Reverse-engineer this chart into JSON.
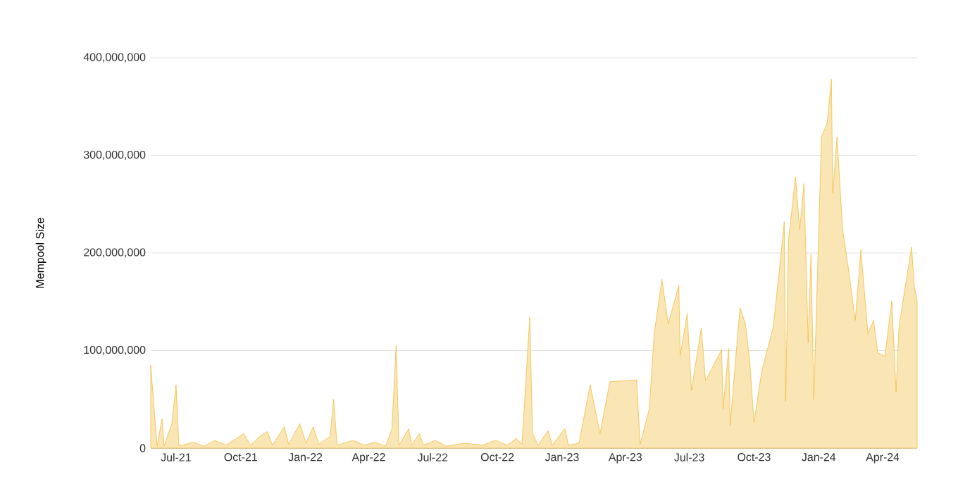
{
  "chart_data": {
    "type": "area",
    "ylabel": "Mempool Size",
    "color": "#f0b52c",
    "grid": "y",
    "xlim": [
      "2021-05-26",
      "2024-05-20"
    ],
    "xticks": [
      {
        "value": "2021-07-01",
        "label": "Jul-21"
      },
      {
        "value": "2021-10-01",
        "label": "Oct-21"
      },
      {
        "value": "2022-01-01",
        "label": "Jan-22"
      },
      {
        "value": "2022-04-01",
        "label": "Apr-22"
      },
      {
        "value": "2022-07-01",
        "label": "Jul-22"
      },
      {
        "value": "2022-10-01",
        "label": "Oct-22"
      },
      {
        "value": "2023-01-01",
        "label": "Jan-23"
      },
      {
        "value": "2023-04-01",
        "label": "Apr-23"
      },
      {
        "value": "2023-07-01",
        "label": "Jul-23"
      },
      {
        "value": "2023-10-01",
        "label": "Oct-23"
      },
      {
        "value": "2024-01-01",
        "label": "Jan-24"
      },
      {
        "value": "2024-04-01",
        "label": "Apr-24"
      }
    ],
    "ylim": [
      0,
      400000000
    ],
    "yticks": [
      {
        "value": 0,
        "label": "0"
      },
      {
        "value": 100000000,
        "label": "100,000,000"
      },
      {
        "value": 200000000,
        "label": "200,000,000"
      },
      {
        "value": 300000000,
        "label": "300,000,000"
      },
      {
        "value": 400000000,
        "label": "400,000,000"
      }
    ],
    "x": [
      "2021-05-26",
      "2021-06-01",
      "2021-06-04",
      "2021-06-11",
      "2021-06-14",
      "2021-06-25",
      "2021-07-01",
      "2021-07-05",
      "2021-07-10",
      "2021-07-25",
      "2021-08-10",
      "2021-08-25",
      "2021-09-10",
      "2021-09-25",
      "2021-10-05",
      "2021-10-15",
      "2021-10-28",
      "2021-11-08",
      "2021-11-15",
      "2021-12-02",
      "2021-12-08",
      "2021-12-24",
      "2022-01-02",
      "2022-01-12",
      "2022-01-20",
      "2022-02-05",
      "2022-02-10",
      "2022-02-15",
      "2022-03-10",
      "2022-03-25",
      "2022-04-10",
      "2022-04-25",
      "2022-05-04",
      "2022-05-10",
      "2022-05-14",
      "2022-05-28",
      "2022-06-01",
      "2022-06-12",
      "2022-06-18",
      "2022-07-05",
      "2022-07-20",
      "2022-08-15",
      "2022-09-10",
      "2022-09-28",
      "2022-10-15",
      "2022-10-28",
      "2022-11-05",
      "2022-11-16",
      "2022-11-20",
      "2022-11-28",
      "2022-12-12",
      "2022-12-18",
      "2023-01-05",
      "2023-01-10",
      "2023-01-25",
      "2023-02-10",
      "2023-02-24",
      "2023-03-10",
      "2023-04-17",
      "2023-04-22",
      "2023-05-05",
      "2023-05-12",
      "2023-05-23",
      "2023-06-01",
      "2023-06-16",
      "2023-06-18",
      "2023-06-28",
      "2023-07-04",
      "2023-07-18",
      "2023-07-24",
      "2023-08-16",
      "2023-08-18",
      "2023-08-26",
      "2023-08-28",
      "2023-09-11",
      "2023-09-19",
      "2023-09-25",
      "2023-10-01",
      "2023-10-12",
      "2023-10-28",
      "2023-11-05",
      "2023-11-13",
      "2023-11-15",
      "2023-11-19",
      "2023-11-29",
      "2023-12-05",
      "2023-12-11",
      "2023-12-17",
      "2023-12-21",
      "2023-12-25",
      "2024-01-05",
      "2024-01-13",
      "2024-01-19",
      "2024-01-21",
      "2024-01-27",
      "2024-02-04",
      "2024-02-12",
      "2024-02-22",
      "2024-03-01",
      "2024-03-11",
      "2024-03-19",
      "2024-03-25",
      "2024-04-04",
      "2024-04-14",
      "2024-04-20",
      "2024-04-24",
      "2024-05-04",
      "2024-05-12",
      "2024-05-16",
      "2024-05-20"
    ],
    "values": [
      85000000,
      30000000,
      2000000,
      30000000,
      2000000,
      25000000,
      65000000,
      3000000,
      3000000,
      6000000,
      2000000,
      8000000,
      3000000,
      10000000,
      15000000,
      3000000,
      12000000,
      17000000,
      3000000,
      22000000,
      4000000,
      25000000,
      5000000,
      22000000,
      4000000,
      12000000,
      50000000,
      3000000,
      8000000,
      3000000,
      6000000,
      2000000,
      20000000,
      105000000,
      3000000,
      20000000,
      3000000,
      15000000,
      3000000,
      8000000,
      2000000,
      5000000,
      3000000,
      8000000,
      3000000,
      10000000,
      4000000,
      134000000,
      15000000,
      3000000,
      18000000,
      3000000,
      20000000,
      3000000,
      5000000,
      65000000,
      15000000,
      68000000,
      70000000,
      4000000,
      40000000,
      117000000,
      173000000,
      127000000,
      167000000,
      95000000,
      138000000,
      59000000,
      123000000,
      69000000,
      101000000,
      40000000,
      102000000,
      23000000,
      144000000,
      127000000,
      88000000,
      26000000,
      79000000,
      123000000,
      175000000,
      232000000,
      48000000,
      213000000,
      278000000,
      224000000,
      271000000,
      108000000,
      199000000,
      50000000,
      319000000,
      333000000,
      378000000,
      261000000,
      319000000,
      224000000,
      185000000,
      131000000,
      203000000,
      117000000,
      131000000,
      98000000,
      94000000,
      151000000,
      58000000,
      123000000,
      170000000,
      206000000,
      166000000,
      150000000
    ]
  }
}
